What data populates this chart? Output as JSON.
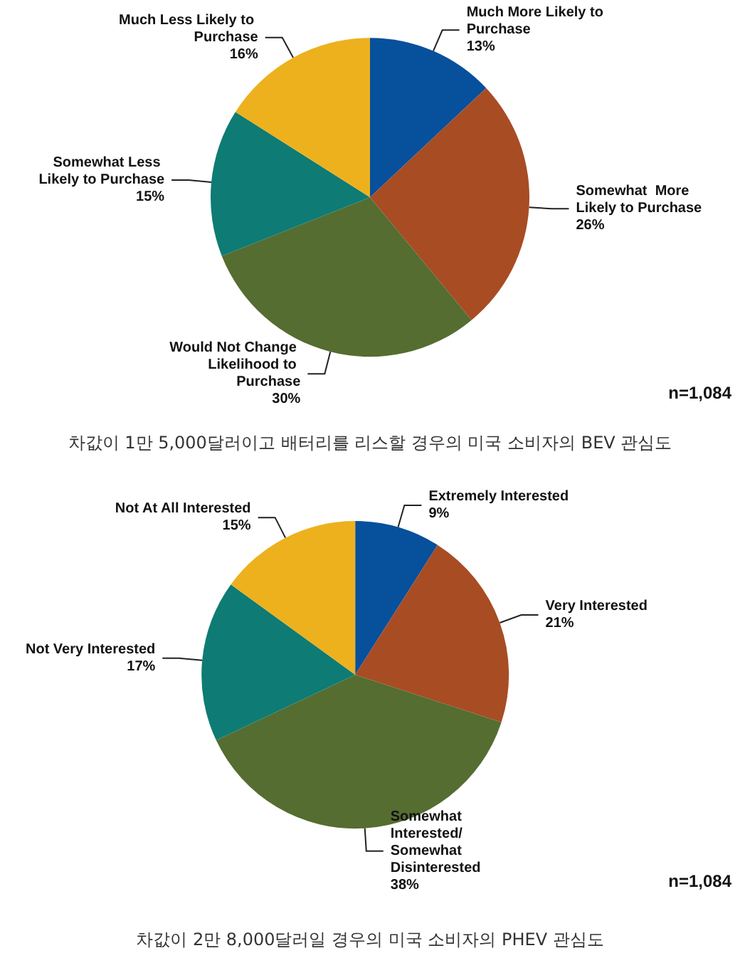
{
  "chart_data": [
    {
      "type": "pie",
      "title": "차값이 1만 5,000달러이고 배터리를 리스할 경우의 미국 소비자의 BEV 관심도",
      "categories": [
        "Much More Likely to Purchase",
        "Somewhat  More Likely to Purchase",
        "Would Not Change Likelihood to Purchase",
        "Somewhat Less Likely to Purchase",
        "Much Less Likely to Purchase"
      ],
      "values": [
        13,
        26,
        30,
        15,
        16
      ],
      "value_labels": [
        "13%",
        "26%",
        "30%",
        "15%",
        "16%"
      ],
      "colors": [
        "#07509c",
        "#a84c24",
        "#556d30",
        "#0e7b74",
        "#edb11e"
      ],
      "annotations": [
        "n=1,084"
      ]
    },
    {
      "type": "pie",
      "title": "차값이 2만 8,000달러일 경우의 미국 소비자의 PHEV 관심도",
      "categories": [
        "Extremely Interested",
        "Very Interested",
        "Somewhat Interested/ Somewhat Disinterested",
        "Not Very Interested",
        "Not At All Interested"
      ],
      "values": [
        9,
        21,
        38,
        17,
        15
      ],
      "value_labels": [
        "9%",
        "21%",
        "38%",
        "17%",
        "15%"
      ],
      "colors": [
        "#07509c",
        "#a84c24",
        "#556d30",
        "#0e7b74",
        "#edb11e"
      ],
      "annotations": [
        "n=1,084"
      ]
    }
  ]
}
